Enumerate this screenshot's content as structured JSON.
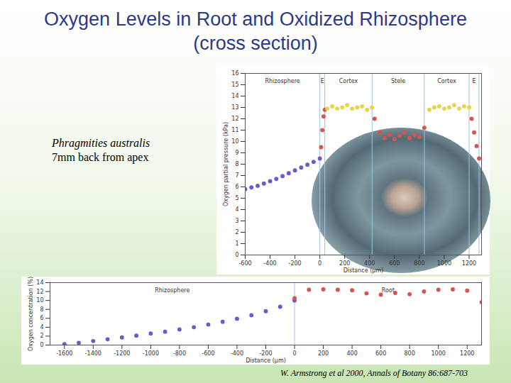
{
  "title": "Oxygen Levels in Root and Oxidized Rhizosphere (cross section)",
  "species": "Phragmities australis",
  "position_note": "7mm back from apex",
  "source": "W. Armstrong et al 2000, Annals of Botany 86:687-703",
  "chart_data": [
    {
      "type": "scatter",
      "x_label": "Distance (µm)",
      "y_label": "Oxygen partial pressure (kPa)",
      "xlim": [
        -600,
        1300
      ],
      "xticks": [
        -600,
        -400,
        -200,
        0,
        200,
        400,
        600,
        800,
        1000,
        1200
      ],
      "ylim": [
        0,
        16
      ],
      "yticks": [
        0,
        1,
        2,
        3,
        4,
        5,
        6,
        7,
        8,
        9,
        10,
        11,
        12,
        13,
        14,
        15,
        16
      ],
      "grid": false,
      "marker": "circle",
      "zones": [
        {
          "label": "Rhizosphere",
          "start": -600,
          "end": 0
        },
        {
          "label": "E",
          "start": 0,
          "end": 40
        },
        {
          "label": "Cortex",
          "start": 40,
          "end": 420
        },
        {
          "label": "Stele",
          "start": 420,
          "end": 840
        },
        {
          "label": "Cortex",
          "start": 840,
          "end": 1200
        },
        {
          "label": "E",
          "start": 1200,
          "end": 1280
        }
      ],
      "series": [
        {
          "color": "#6a5acd",
          "x": [
            -600,
            -550,
            -500,
            -450,
            -400,
            -350,
            -300,
            -250,
            -200,
            -150,
            -100,
            -50,
            0
          ],
          "values": [
            5.8,
            5.95,
            6.1,
            6.3,
            6.5,
            6.7,
            6.95,
            7.2,
            7.45,
            7.7,
            7.95,
            8.2,
            8.5
          ]
        },
        {
          "color": "#d9534f",
          "x": [
            10,
            20,
            30,
            40
          ],
          "values": [
            9.5,
            11,
            12.2,
            12.8
          ]
        },
        {
          "color": "#e8d44d",
          "x": [
            60,
            100,
            140,
            180,
            220,
            260,
            300,
            340,
            380,
            420
          ],
          "values": [
            12.9,
            13.1,
            12.9,
            13.0,
            13.2,
            12.9,
            13.0,
            13.1,
            12.8,
            13.0
          ]
        },
        {
          "color": "#d9534f",
          "x": [
            440,
            480,
            520,
            560,
            600,
            640,
            680,
            720,
            760,
            800,
            840
          ],
          "values": [
            12.0,
            10.8,
            10.3,
            10.6,
            10.2,
            10.5,
            10.8,
            10.3,
            10.6,
            10.4,
            11.2
          ]
        },
        {
          "color": "#e8d44d",
          "x": [
            880,
            920,
            960,
            1000,
            1040,
            1080,
            1120,
            1160,
            1200
          ],
          "values": [
            12.8,
            13.0,
            13.1,
            12.9,
            13.0,
            13.2,
            12.9,
            13.1,
            13.0
          ]
        },
        {
          "color": "#d9534f",
          "x": [
            1220,
            1240,
            1260,
            1280
          ],
          "values": [
            12.0,
            10.8,
            9.6,
            8.5
          ]
        }
      ]
    },
    {
      "type": "scatter",
      "x_label": "Distance (µm)",
      "y_label": "Oxygen concentration (%)",
      "xlim": [
        -1700,
        1300
      ],
      "xticks": [
        -1600,
        -1400,
        -1200,
        -1000,
        -800,
        -600,
        -400,
        -200,
        0,
        200,
        400,
        600,
        800,
        1000,
        1200
      ],
      "ylim": [
        0,
        14
      ],
      "yticks": [
        0,
        2,
        4,
        6,
        8,
        10,
        12,
        14
      ],
      "grid": false,
      "marker": "circle",
      "zones": [
        {
          "label": "Rhizosphere",
          "start": -1700,
          "end": 0
        },
        {
          "label": "Root",
          "start": 0,
          "end": 1300
        }
      ],
      "series": [
        {
          "color": "#6a5acd",
          "x": [
            -1600,
            -1500,
            -1400,
            -1300,
            -1200,
            -1100,
            -1000,
            -900,
            -800,
            -700,
            -600,
            -500,
            -400,
            -300,
            -200,
            -100,
            0
          ],
          "values": [
            0.2,
            0.5,
            0.9,
            1.3,
            1.7,
            2.1,
            2.6,
            3.0,
            3.5,
            4.0,
            4.6,
            5.2,
            5.9,
            6.7,
            7.6,
            8.6,
            10.0
          ]
        },
        {
          "color": "#d9534f",
          "x": [
            0,
            100,
            200,
            300,
            400,
            500,
            600,
            700,
            800,
            900,
            1000,
            1100,
            1200,
            1300
          ],
          "values": [
            10.5,
            12.4,
            12.5,
            12.4,
            12.3,
            11.6,
            11.3,
            11.7,
            11.4,
            12.0,
            12.4,
            12.5,
            12.2,
            9.6
          ]
        }
      ]
    }
  ]
}
